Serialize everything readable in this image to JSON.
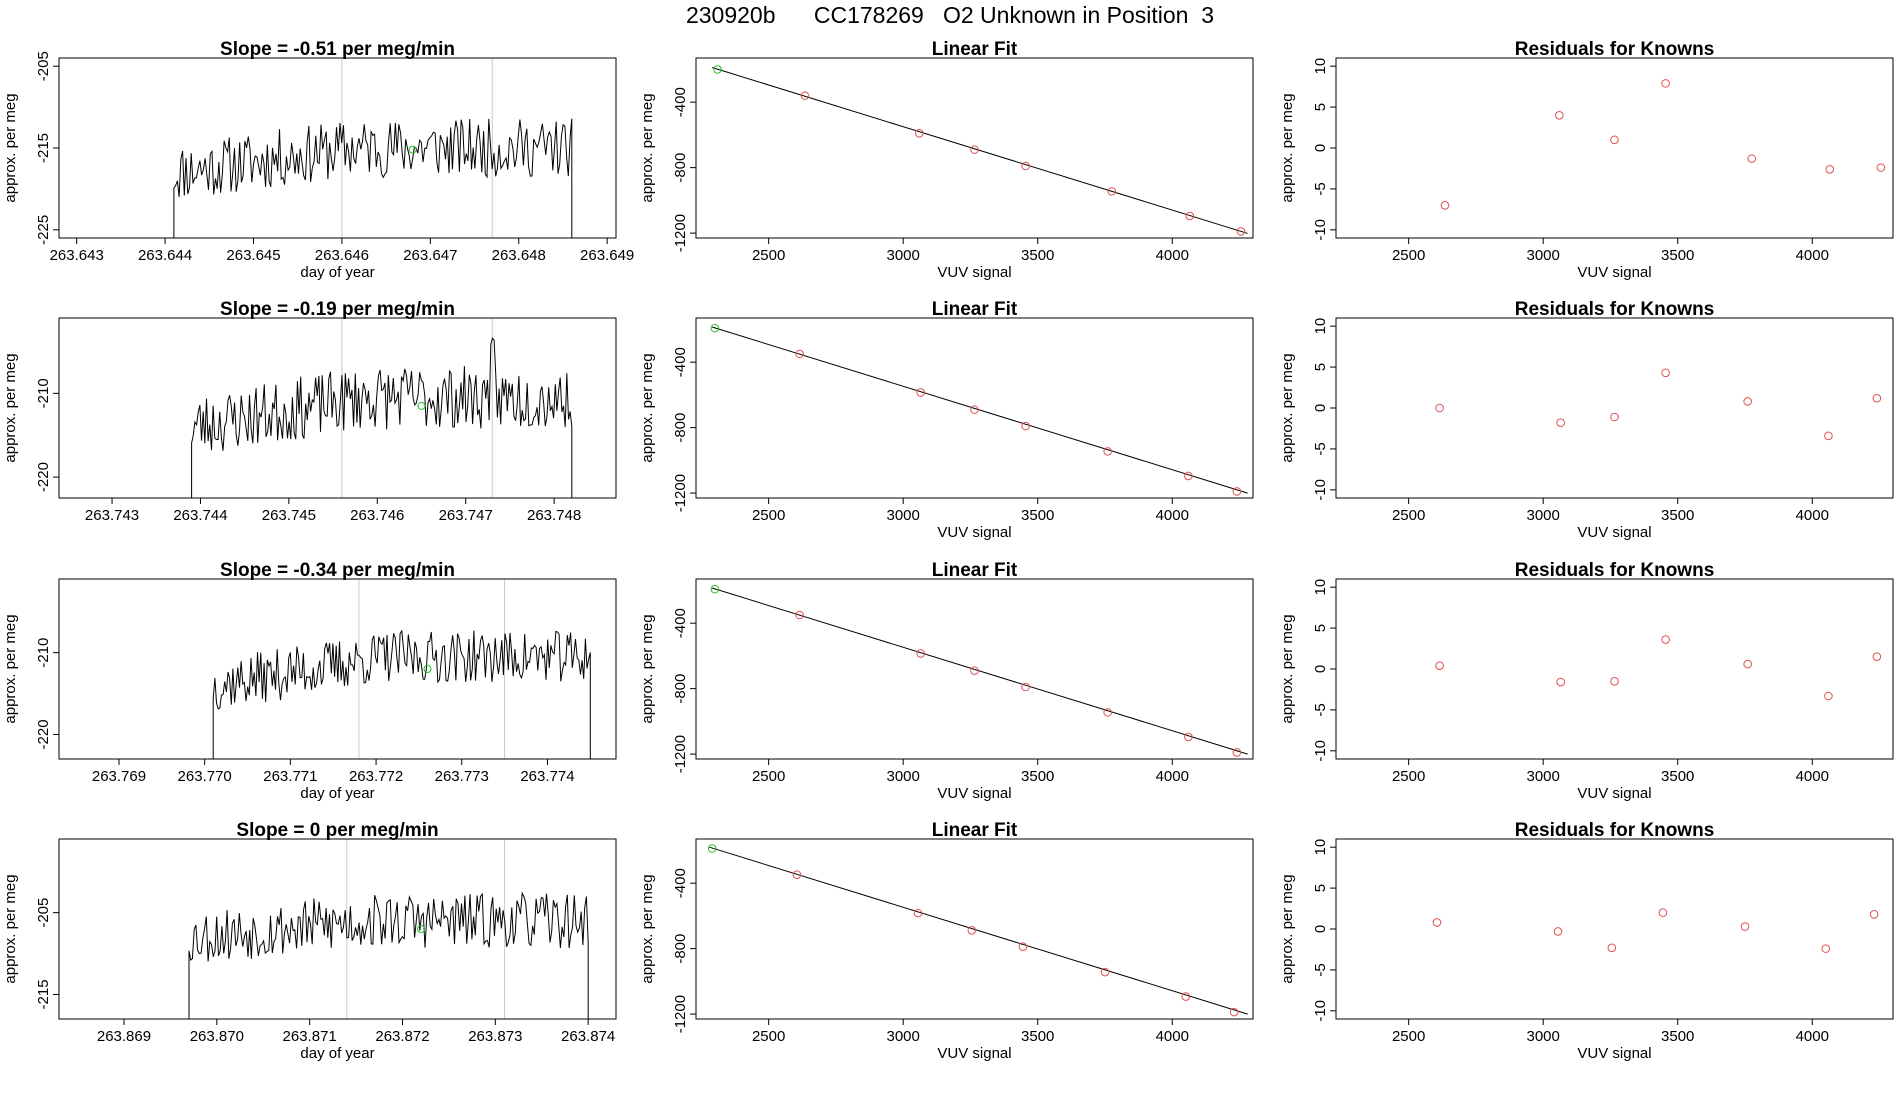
{
  "main_title": "230920b      CC178269   O2 Unknown in Position  3",
  "chart_data": [
    {
      "type": "line",
      "panel": "time-series",
      "row": 1,
      "title": "Slope =  -0.51  per meg/min",
      "xlabel": "day of year",
      "ylabel": "approx. per meg",
      "xlim": [
        263.6428,
        263.6491
      ],
      "ylim": [
        -226,
        -204
      ],
      "xticks": [
        "263.643",
        "263.644",
        "263.645",
        "263.646",
        "263.647",
        "263.648",
        "263.649"
      ],
      "xtick_values": [
        263.643,
        263.644,
        263.645,
        263.646,
        263.647,
        263.648,
        263.649
      ],
      "yticks": [
        "-225",
        "-215",
        "-205"
      ],
      "ytick_values": [
        -225,
        -215,
        -205
      ],
      "vlines": [
        263.646,
        263.6477
      ],
      "series_start": 263.6441,
      "series_end": 263.6486,
      "green_point": [
        263.6468,
        -215.2
      ],
      "seed": 11,
      "base": -218,
      "amp": 3.6,
      "rise": 3,
      "edge_low": -229
    },
    {
      "type": "scatter",
      "panel": "linear-fit",
      "row": 1,
      "title": "Linear Fit",
      "xlabel": "VUV signal",
      "ylabel": "approx. per meg",
      "xlim": [
        2230,
        4300
      ],
      "ylim": [
        -1230,
        -130
      ],
      "xticks": [
        "2500",
        "3000",
        "3500",
        "4000"
      ],
      "xtick_values": [
        2500,
        3000,
        3500,
        4000
      ],
      "yticks": [
        "-1200",
        "-800",
        "-400"
      ],
      "ytick_values": [
        -1200,
        -800,
        -400
      ],
      "known_x": [
        2635,
        3060,
        3265,
        3455,
        3775,
        4065,
        4255
      ],
      "known_y": [
        -360,
        -590,
        -690,
        -790,
        -945,
        -1095,
        -1190
      ],
      "unknown": [
        2310,
        -200
      ],
      "fit_line": [
        [
          2290,
          -188
        ],
        [
          4280,
          -1202
        ]
      ]
    },
    {
      "type": "scatter",
      "panel": "residuals",
      "row": 1,
      "title": "Residuals for Knowns",
      "xlabel": "VUV signal",
      "ylabel": "approx. per meg",
      "xlim": [
        2230,
        4300
      ],
      "ylim": [
        -11,
        11
      ],
      "xticks": [
        "2500",
        "3000",
        "3500",
        "4000"
      ],
      "xtick_values": [
        2500,
        3000,
        3500,
        4000
      ],
      "yticks": [
        "-10",
        "-5",
        "0",
        "5",
        "10"
      ],
      "ytick_values": [
        -10,
        -5,
        0,
        5,
        10
      ],
      "x": [
        2635,
        3060,
        3265,
        3455,
        3775,
        4065,
        4255
      ],
      "y": [
        -7.0,
        4.0,
        1.0,
        7.9,
        -1.3,
        -2.6,
        -2.4
      ]
    },
    {
      "type": "line",
      "panel": "time-series",
      "row": 2,
      "title": "Slope =  -0.19  per meg/min",
      "xlabel": "",
      "ylabel": "approx. per meg",
      "xlim": [
        263.7424,
        263.7487
      ],
      "ylim": [
        -222.5,
        -201
      ],
      "xticks": [
        "263.743",
        "263.744",
        "263.745",
        "263.746",
        "263.747",
        "263.748"
      ],
      "xtick_values": [
        263.743,
        263.744,
        263.745,
        263.746,
        263.747,
        263.748
      ],
      "yticks": [
        "-220",
        "-210"
      ],
      "ytick_values": [
        -220,
        -210
      ],
      "vlines": [
        263.7456,
        263.7473
      ],
      "series_start": 263.7439,
      "series_end": 263.7482,
      "green_point": [
        263.7465,
        -211.5
      ],
      "seed": 23,
      "base": -214,
      "amp": 3.8,
      "rise": 3.5,
      "spike": [
        263.7473,
        -204
      ],
      "edge_low": -224
    },
    {
      "type": "scatter",
      "panel": "linear-fit",
      "row": 2,
      "title": "Linear Fit",
      "xlabel": "VUV signal",
      "ylabel": "approx. per meg",
      "xlim": [
        2230,
        4300
      ],
      "ylim": [
        -1230,
        -130
      ],
      "xticks": [
        "2500",
        "3000",
        "3500",
        "4000"
      ],
      "xtick_values": [
        2500,
        3000,
        3500,
        4000
      ],
      "yticks": [
        "-1200",
        "-800",
        "-400"
      ],
      "ytick_values": [
        -1200,
        -800,
        -400
      ],
      "known_x": [
        2615,
        3065,
        3265,
        3455,
        3760,
        4060,
        4240
      ],
      "known_y": [
        -350,
        -585,
        -690,
        -790,
        -945,
        -1095,
        -1190
      ],
      "unknown": [
        2300,
        -192
      ],
      "fit_line": [
        [
          2290,
          -185
        ],
        [
          4280,
          -1200
        ]
      ]
    },
    {
      "type": "scatter",
      "panel": "residuals",
      "row": 2,
      "title": "Residuals for Knowns",
      "xlabel": "VUV signal",
      "ylabel": "approx. per meg",
      "xlim": [
        2230,
        4300
      ],
      "ylim": [
        -11,
        11
      ],
      "xticks": [
        "2500",
        "3000",
        "3500",
        "4000"
      ],
      "xtick_values": [
        2500,
        3000,
        3500,
        4000
      ],
      "yticks": [
        "-10",
        "-5",
        "0",
        "5",
        "10"
      ],
      "ytick_values": [
        -10,
        -5,
        0,
        5,
        10
      ],
      "x": [
        2615,
        3065,
        3265,
        3455,
        3760,
        4060,
        4240
      ],
      "y": [
        0.0,
        -1.8,
        -1.1,
        4.3,
        0.8,
        -3.4,
        1.2
      ]
    },
    {
      "type": "line",
      "panel": "time-series",
      "row": 3,
      "title": "Slope =  -0.34  per meg/min",
      "xlabel": "day of year",
      "ylabel": "approx. per meg",
      "xlim": [
        263.7683,
        263.7748
      ],
      "ylim": [
        -223,
        -201
      ],
      "xticks": [
        "263.769",
        "263.770",
        "263.771",
        "263.772",
        "263.773",
        "263.774"
      ],
      "xtick_values": [
        263.769,
        263.77,
        263.771,
        263.772,
        263.773,
        263.774
      ],
      "yticks": [
        "-220",
        "-210"
      ],
      "ytick_values": [
        -220,
        -210
      ],
      "vlines": [
        263.7718,
        263.7735
      ],
      "series_start": 263.7701,
      "series_end": 263.7745,
      "green_point": [
        263.7726,
        -212
      ],
      "seed": 37,
      "base": -214,
      "amp": 3.2,
      "rise": 3.5,
      "edge_low": -226
    },
    {
      "type": "scatter",
      "panel": "linear-fit",
      "row": 3,
      "title": "Linear Fit",
      "xlabel": "VUV signal",
      "ylabel": "approx. per meg",
      "xlim": [
        2230,
        4300
      ],
      "ylim": [
        -1230,
        -130
      ],
      "xticks": [
        "2500",
        "3000",
        "3500",
        "4000"
      ],
      "xtick_values": [
        2500,
        3000,
        3500,
        4000
      ],
      "yticks": [
        "-1200",
        "-800",
        "-400"
      ],
      "ytick_values": [
        -1200,
        -800,
        -400
      ],
      "known_x": [
        2615,
        3065,
        3265,
        3455,
        3760,
        4060,
        4240
      ],
      "known_y": [
        -350,
        -585,
        -690,
        -790,
        -945,
        -1095,
        -1190
      ],
      "unknown": [
        2300,
        -192
      ],
      "fit_line": [
        [
          2290,
          -185
        ],
        [
          4280,
          -1200
        ]
      ]
    },
    {
      "type": "scatter",
      "panel": "residuals",
      "row": 3,
      "title": "Residuals for Knowns",
      "xlabel": "VUV signal",
      "ylabel": "approx. per meg",
      "xlim": [
        2230,
        4300
      ],
      "ylim": [
        -11,
        11
      ],
      "xticks": [
        "2500",
        "3000",
        "3500",
        "4000"
      ],
      "xtick_values": [
        2500,
        3000,
        3500,
        4000
      ],
      "yticks": [
        "-10",
        "-5",
        "0",
        "5",
        "10"
      ],
      "ytick_values": [
        -10,
        -5,
        0,
        5,
        10
      ],
      "x": [
        2615,
        3065,
        3265,
        3455,
        3760,
        4060,
        4240
      ],
      "y": [
        0.4,
        -1.6,
        -1.5,
        3.6,
        0.6,
        -3.3,
        1.5
      ]
    },
    {
      "type": "line",
      "panel": "time-series",
      "row": 4,
      "title": "Slope =  0  per meg/min",
      "xlabel": "day of year",
      "ylabel": "approx. per meg",
      "xlim": [
        263.8683,
        263.8743
      ],
      "ylim": [
        -218,
        -196
      ],
      "xticks": [
        "263.869",
        "263.870",
        "263.871",
        "263.872",
        "263.873",
        "263.874"
      ],
      "xtick_values": [
        263.869,
        263.87,
        263.871,
        263.872,
        263.873,
        263.874
      ],
      "yticks": [
        "-215",
        "-205"
      ],
      "ytick_values": [
        -215,
        -205
      ],
      "vlines": [
        263.8714,
        263.8731
      ],
      "series_start": 263.8697,
      "series_end": 263.874,
      "green_point": [
        263.8722,
        -207
      ],
      "seed": 53,
      "base": -208,
      "amp": 3.4,
      "rise": 2,
      "edge_low": -220
    },
    {
      "type": "scatter",
      "panel": "linear-fit",
      "row": 4,
      "title": "Linear Fit",
      "xlabel": "VUV signal",
      "ylabel": "approx. per meg",
      "xlim": [
        2230,
        4300
      ],
      "ylim": [
        -1230,
        -130
      ],
      "xticks": [
        "2500",
        "3000",
        "3500",
        "4000"
      ],
      "xtick_values": [
        2500,
        3000,
        3500,
        4000
      ],
      "yticks": [
        "-1200",
        "-800",
        "-400"
      ],
      "ytick_values": [
        -1200,
        -800,
        -400
      ],
      "known_x": [
        2605,
        3055,
        3255,
        3445,
        3750,
        4050,
        4230
      ],
      "known_y": [
        -348,
        -583,
        -688,
        -788,
        -943,
        -1093,
        -1188
      ],
      "unknown": [
        2290,
        -188
      ],
      "fit_line": [
        [
          2280,
          -180
        ],
        [
          4280,
          -1200
        ]
      ]
    },
    {
      "type": "scatter",
      "panel": "residuals",
      "row": 4,
      "title": "Residuals for Knowns",
      "xlabel": "VUV signal",
      "ylabel": "approx. per meg",
      "xlim": [
        2230,
        4300
      ],
      "ylim": [
        -11,
        11
      ],
      "xticks": [
        "2500",
        "3000",
        "3500",
        "4000"
      ],
      "xtick_values": [
        2500,
        3000,
        3500,
        4000
      ],
      "yticks": [
        "-10",
        "-5",
        "0",
        "5",
        "10"
      ],
      "ytick_values": [
        -10,
        -5,
        0,
        5,
        10
      ],
      "x": [
        2605,
        3055,
        3255,
        3445,
        3750,
        4050,
        4230
      ],
      "y": [
        0.8,
        -0.3,
        -2.3,
        2.0,
        0.3,
        -2.4,
        1.8
      ]
    }
  ]
}
